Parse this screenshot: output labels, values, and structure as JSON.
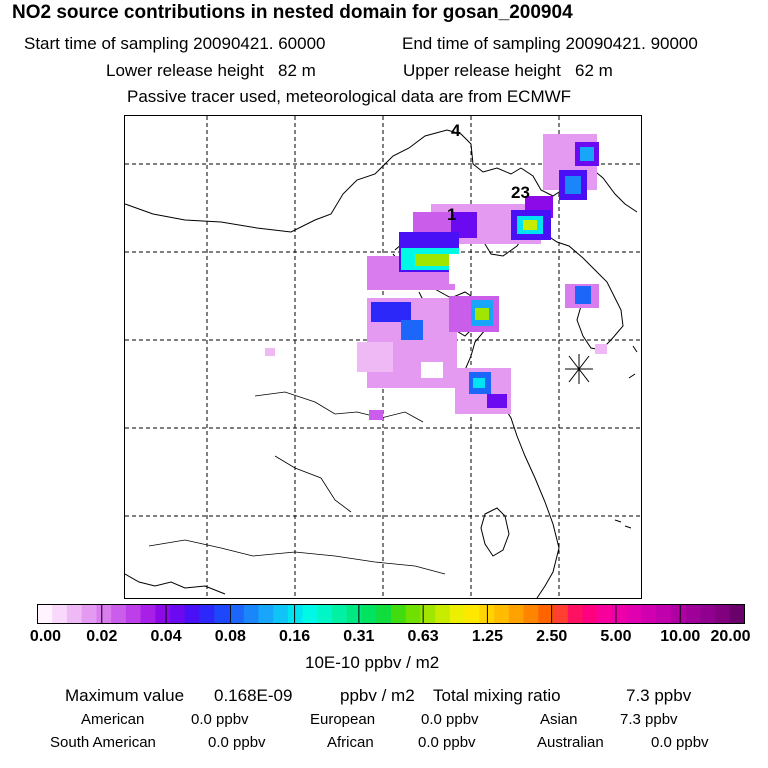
{
  "title": "NO2 source contributions in nested domain for gosan_200904",
  "sampling": {
    "start_label": "Start time of sampling",
    "start_value": "20090421. 60000",
    "end_label": "End time of sampling",
    "end_value": "20090421. 90000"
  },
  "release": {
    "lower_label": "Lower release height",
    "lower_value": "82 m",
    "upper_label": "Upper release height",
    "upper_value": "62 m"
  },
  "note": "Passive tracer used, meteorological data are from ECMWF",
  "map": {
    "markers": [
      "4",
      "23",
      "1"
    ],
    "receptor_icon": "asterisk-receptor-icon"
  },
  "colorbar": {
    "ticks": [
      "0.00",
      "0.02",
      "0.04",
      "0.08",
      "0.16",
      "0.31",
      "0.63",
      "1.25",
      "2.50",
      "5.00",
      "10.00",
      "20.00"
    ],
    "unit": "10E-10 ppbv / m2",
    "colors": [
      "#fff4ff",
      "#f8d8fb",
      "#efb9f6",
      "#e59af2",
      "#d87cee",
      "#cb5deb",
      "#bc3fe9",
      "#a81fe8",
      "#8c0ae8",
      "#6b0af0",
      "#4a10f5",
      "#2c28fa",
      "#1e46fa",
      "#1c66fa",
      "#1a86fa",
      "#18a6fa",
      "#10c4f8",
      "#00e4f2",
      "#00f8e6",
      "#00f6c6",
      "#00f0a4",
      "#00e882",
      "#00e260",
      "#10dc3c",
      "#40dc10",
      "#70e000",
      "#a0e600",
      "#c8ec00",
      "#ecf000",
      "#ffe800",
      "#ffd400",
      "#ffbc00",
      "#ffa200",
      "#ff8400",
      "#ff6400",
      "#ff4030",
      "#ff1060",
      "#ff0080",
      "#f8009c",
      "#ee00a8",
      "#e000b0",
      "#d000b0",
      "#c000ac",
      "#b000a4",
      "#a0009a",
      "#90008e",
      "#80007e",
      "#6a006a"
    ]
  },
  "summary": {
    "max_label": "Maximum value",
    "max_value": "0.168E-09",
    "max_unit": "ppbv / m2",
    "total_label": "Total mixing ratio",
    "total_value": "7.3 ppbv",
    "american_label": "American",
    "american_value": "0.0 ppbv",
    "european_label": "European",
    "european_value": "0.0 ppbv",
    "asian_label": "Asian",
    "asian_value": "7.3 ppbv",
    "south_american_label": "South American",
    "south_american_value": "0.0 ppbv",
    "african_label": "African",
    "african_value": "0.0 ppbv",
    "australian_label": "Australian",
    "australian_value": "0.0 ppbv"
  }
}
